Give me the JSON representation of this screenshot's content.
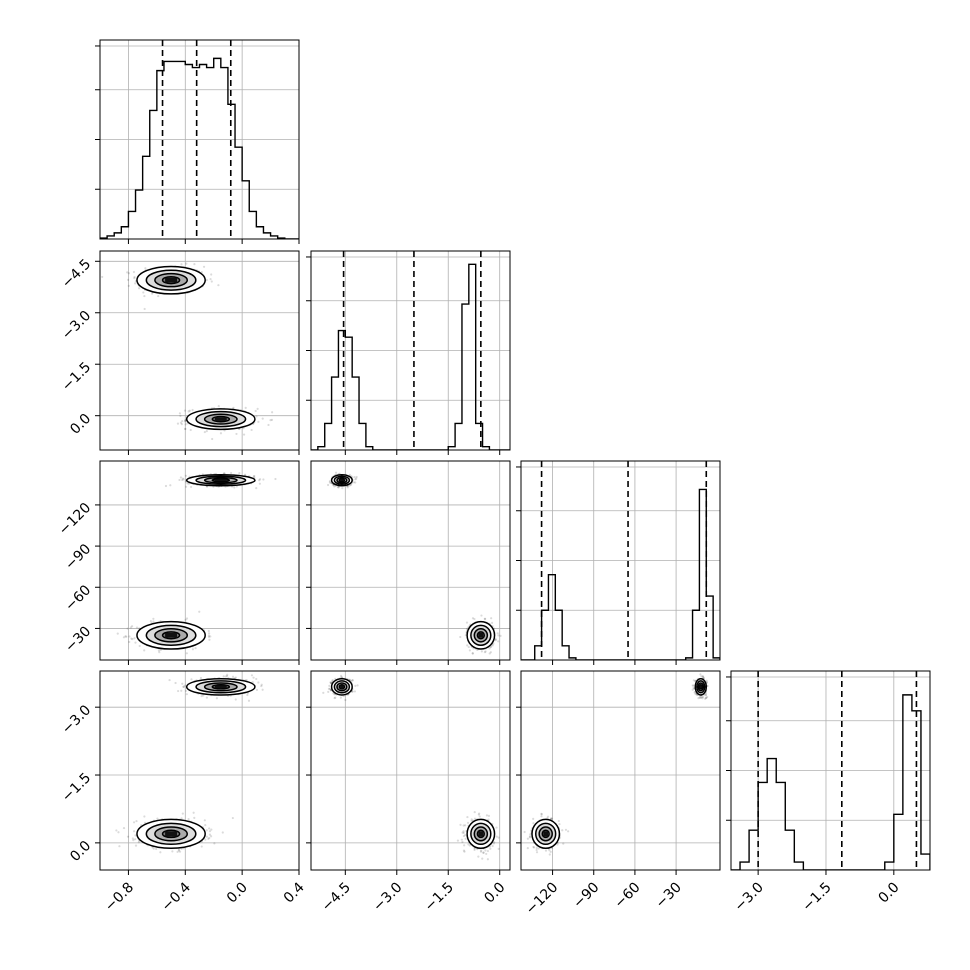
{
  "chart_data": {
    "type": "corner",
    "title": "",
    "grid": true,
    "colors": {
      "line": "#000000",
      "quantile": "#000000",
      "grid": "#b0b0b0",
      "density": "#000000"
    },
    "parameters": [
      {
        "range": [
          -1.0,
          0.4
        ],
        "ticks": [
          -0.8,
          -0.4,
          0.0,
          0.4
        ],
        "tick_labels": [
          "−0.8",
          "−0.4",
          "0.0",
          "0.4"
        ],
        "label": ""
      },
      {
        "range": [
          -5.5,
          0.3
        ],
        "ticks": [
          -4.5,
          -3.0,
          -1.5,
          0.0
        ],
        "tick_labels": [
          "−4.5",
          "−3.0",
          "−1.5",
          "0.0"
        ],
        "label": ""
      },
      {
        "range": [
          -143,
          2
        ],
        "ticks": [
          -120,
          -90,
          -60,
          -30
        ],
        "tick_labels": [
          "−120",
          "−90",
          "−60",
          "−30"
        ],
        "label": ""
      },
      {
        "range": [
          -3.6,
          0.8
        ],
        "ticks": [
          -3.0,
          -1.5,
          0.0
        ],
        "tick_labels": [
          "−3.0",
          "−1.5",
          "0.0"
        ],
        "label": ""
      }
    ],
    "y_tick_labels_shown": [
      null,
      [
        "0.0",
        "−1.5",
        "−3.0",
        "−4.5"
      ],
      [
        "−30",
        "−60",
        "−90",
        "−120"
      ],
      [
        "0.0",
        "−1.5",
        "−3.0"
      ]
    ],
    "histograms": [
      {
        "edges": [
          -1.0,
          -0.95,
          -0.9,
          -0.85,
          -0.8,
          -0.75,
          -0.7,
          -0.65,
          -0.6,
          -0.55,
          -0.5,
          -0.45,
          -0.4,
          -0.35,
          -0.3,
          -0.25,
          -0.2,
          -0.15,
          -0.1,
          -0.05,
          0.0,
          0.05,
          0.1,
          0.15,
          0.2,
          0.25,
          0.3,
          0.35,
          0.4
        ],
        "counts": [
          0.3,
          1,
          2,
          4,
          9,
          16,
          27,
          42,
          55,
          58,
          58,
          58,
          57,
          56,
          57,
          56,
          59,
          56,
          44,
          30,
          19,
          9,
          4,
          2,
          1,
          0.3,
          0,
          0
        ],
        "quantiles": [
          -0.56,
          -0.32,
          -0.08
        ],
        "ymax": 65
      },
      {
        "edges": [
          -5.5,
          -5.3,
          -5.1,
          -4.9,
          -4.7,
          -4.5,
          -4.3,
          -4.1,
          -3.9,
          -3.7,
          -3.5,
          -3.3,
          -3.1,
          -2.9,
          -2.7,
          -2.5,
          -2.3,
          -2.1,
          -1.9,
          -1.7,
          -1.5,
          -1.3,
          -1.1,
          -0.9,
          -0.7,
          -0.5,
          -0.3,
          -0.1,
          0.1,
          0.3
        ],
        "counts": [
          0,
          0.5,
          4,
          11,
          18,
          17,
          11,
          4,
          0.5,
          0,
          0,
          0,
          0,
          0,
          0,
          0,
          0,
          0,
          0,
          0,
          0.5,
          4,
          22,
          28,
          4,
          0.5,
          0,
          0,
          0
        ],
        "quantiles": [
          -4.55,
          -2.5,
          -0.55
        ],
        "ymax": 30
      },
      {
        "edges": [
          -143,
          -138,
          -133,
          -128,
          -123,
          -118,
          -113,
          -108,
          -103,
          -98,
          -93,
          -88,
          -83,
          -78,
          -73,
          -68,
          -63,
          -58,
          -53,
          -48,
          -43,
          -38,
          -33,
          -28,
          -23,
          -18,
          -13,
          -8,
          -3,
          2
        ],
        "counts": [
          0,
          0,
          2,
          7,
          12,
          7,
          2,
          0.3,
          0,
          0,
          0,
          0,
          0,
          0,
          0,
          0,
          0,
          0,
          0,
          0,
          0,
          0,
          0,
          0,
          0.3,
          7,
          24,
          9,
          0.3
        ],
        "quantiles": [
          -128,
          -65,
          -8
        ],
        "ymax": 28
      },
      {
        "edges": [
          -3.6,
          -3.4,
          -3.2,
          -3.0,
          -2.8,
          -2.6,
          -2.4,
          -2.2,
          -2.0,
          -1.8,
          -1.6,
          -1.4,
          -1.2,
          -1.0,
          -0.8,
          -0.6,
          -0.4,
          -0.2,
          0.0,
          0.2,
          0.4,
          0.6,
          0.8
        ],
        "counts": [
          0,
          1,
          5,
          11,
          14,
          11,
          5,
          1,
          0,
          0,
          0,
          0,
          0,
          0,
          0,
          0,
          0,
          1,
          7,
          22,
          20,
          2
        ],
        "quantiles": [
          -3.0,
          -1.15,
          0.5
        ],
        "ymax": 25
      }
    ],
    "modes": [
      {
        "weight": 0.5,
        "means": [
          -0.5,
          -0.55,
          -125,
          -2.8
        ],
        "sds": [
          0.12,
          0.2,
          5,
          0.16
        ]
      },
      {
        "weight": 0.5,
        "means": [
          -0.15,
          -4.6,
          -12,
          0.45
        ],
        "sds": [
          0.12,
          0.15,
          2,
          0.09
        ]
      }
    ]
  }
}
